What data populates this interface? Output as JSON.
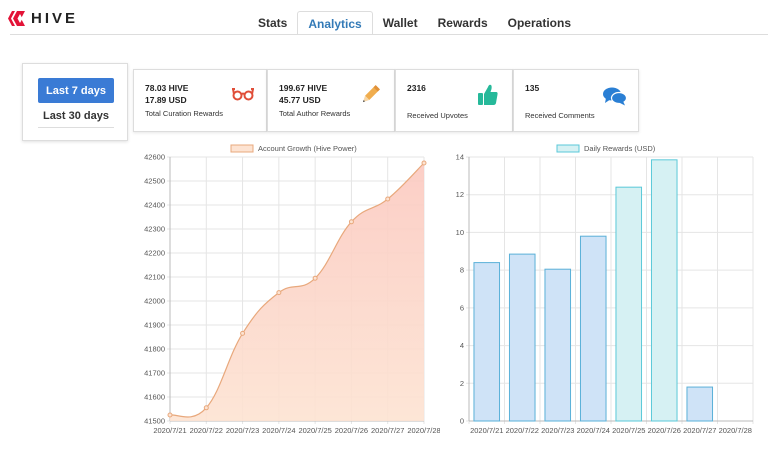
{
  "app": {
    "logo_text": "HIVE"
  },
  "tabs": [
    {
      "label": "Stats",
      "active": false
    },
    {
      "label": "Analytics",
      "active": true
    },
    {
      "label": "Wallet",
      "active": false
    },
    {
      "label": "Rewards",
      "active": false
    },
    {
      "label": "Operations",
      "active": false
    }
  ],
  "period": {
    "last7": "Last 7 days",
    "last30": "Last 30 days",
    "selected": "last7"
  },
  "cards": {
    "curation": {
      "value1": "78.03 HIVE",
      "value2": "17.89 USD",
      "label": "Total Curation Rewards",
      "icon": "glasses-icon",
      "color": "#e04e39"
    },
    "author": {
      "value1": "199.67 HIVE",
      "value2": "45.77 USD",
      "label": "Total Author Rewards",
      "icon": "pencil-icon",
      "color": "#f0ad4e"
    },
    "upvotes": {
      "value1": "2316",
      "label": "Received Upvotes",
      "icon": "thumbs-up-icon",
      "color": "#26b99a"
    },
    "comments": {
      "value1": "135",
      "label": "Received Comments",
      "icon": "comments-icon",
      "color": "#2a7fd4"
    }
  },
  "chart_data": [
    {
      "type": "area",
      "legend": "Account Growth (Hive Power)",
      "categories": [
        "2020/7/21",
        "2020/7/22",
        "2020/7/23",
        "2020/7/24",
        "2020/7/25",
        "2020/7/26",
        "2020/7/27",
        "2020/7/28"
      ],
      "values": [
        41525,
        41555,
        41865,
        42035,
        42095,
        42330,
        42425,
        42575
      ],
      "ylim": [
        41500,
        42600
      ],
      "yticks": [
        "42600",
        "42500",
        "42400",
        "42300",
        "42200",
        "42100",
        "42000",
        "41900",
        "41800",
        "41700",
        "41600",
        "41500"
      ],
      "grid": true,
      "line_color": "#e8a87c",
      "fill_color": "#fde3d2"
    },
    {
      "type": "bar",
      "legend": "Daily Rewards (USD)",
      "categories": [
        "2020/7/21",
        "2020/7/22",
        "2020/7/23",
        "2020/7/24",
        "2020/7/25",
        "2020/7/26",
        "2020/7/27",
        "2020/7/28"
      ],
      "values": [
        8.4,
        8.85,
        8.05,
        9.8,
        12.4,
        13.85,
        1.8,
        0
      ],
      "ylim": [
        0,
        14
      ],
      "yticks": [
        "14",
        "12",
        "10",
        "8",
        "6",
        "4",
        "2",
        "0"
      ],
      "grid": true,
      "bar_fill": "#cfe3f7",
      "bar_stroke": "#5ab0d8",
      "last_bar_fill": "#d6f1f3"
    }
  ]
}
